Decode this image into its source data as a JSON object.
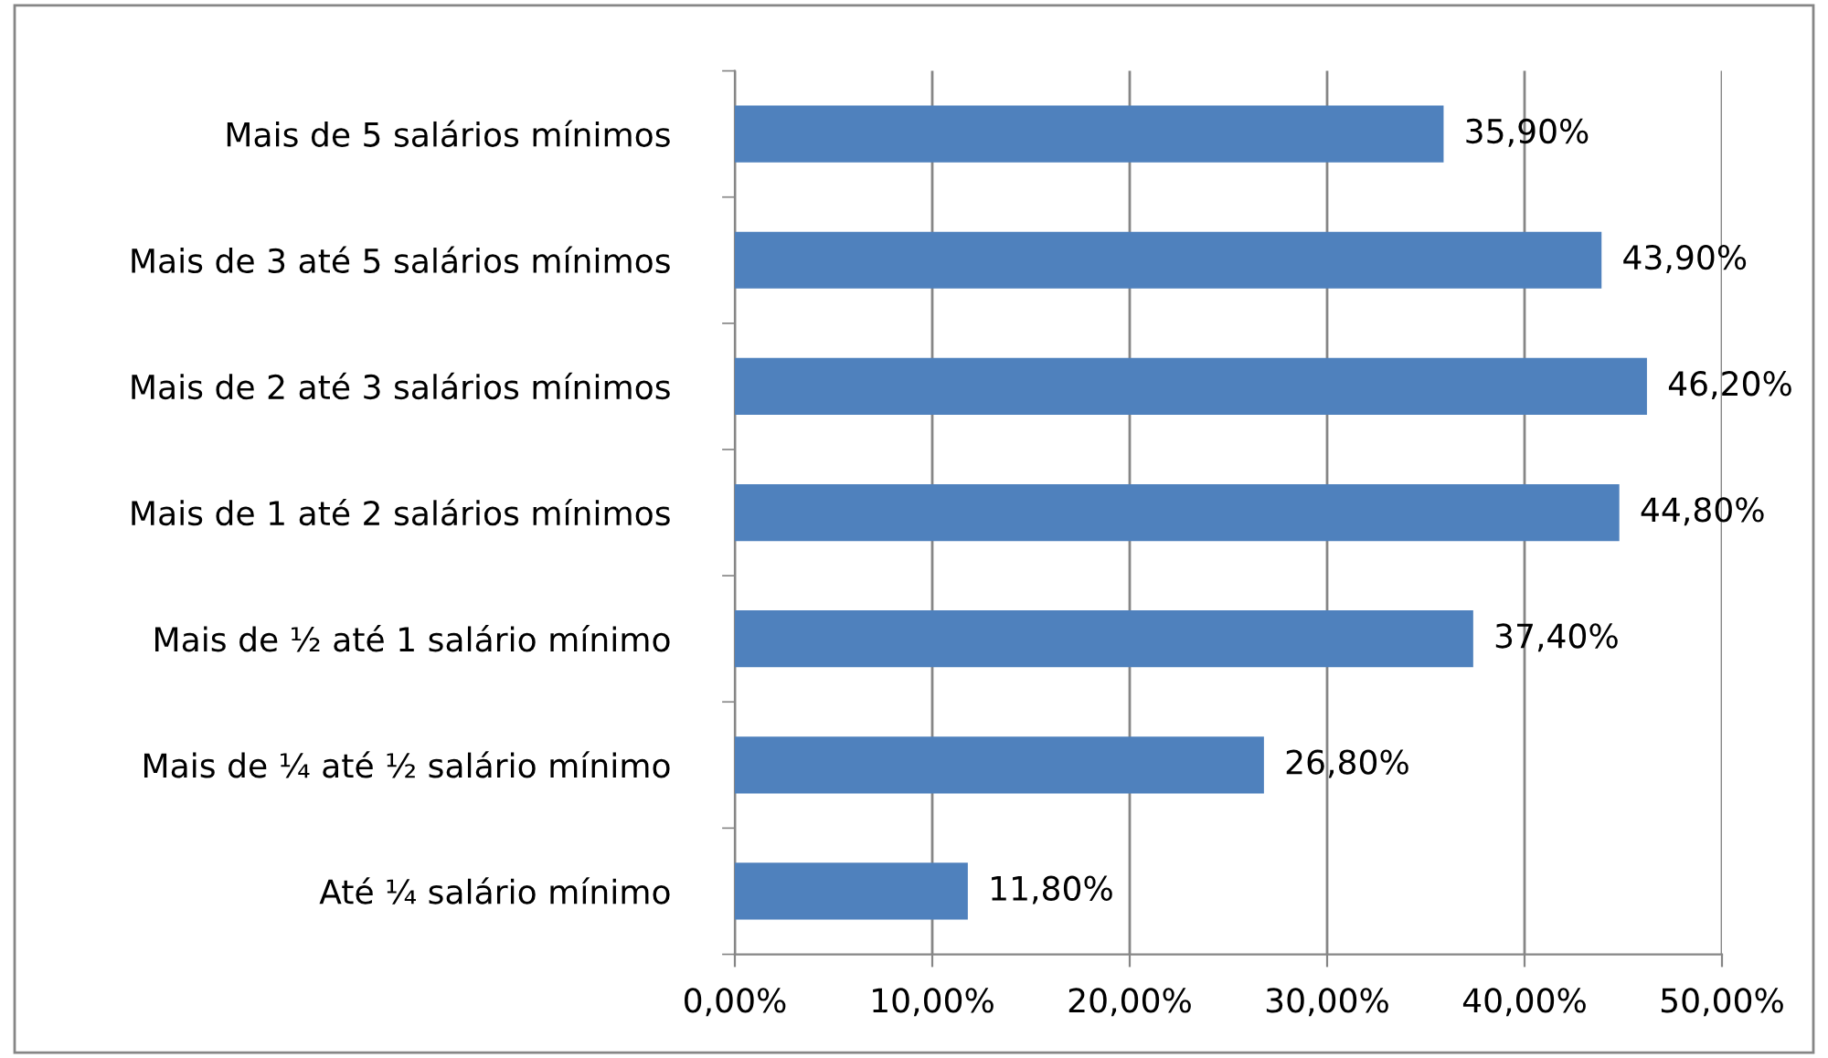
{
  "chart_data": {
    "type": "bar",
    "orientation": "horizontal",
    "categories": [
      "Mais de 5 salários mínimos",
      "Mais de 3 até 5 salários mínimos",
      "Mais de 2 até 3 salários mínimos",
      "Mais de 1 até 2 salários mínimos",
      "Mais de ½ até 1 salário mínimo",
      "Mais de ¼ até ½ salário mínimo",
      "Até ¼ salário mínimo"
    ],
    "values": [
      35.9,
      43.9,
      46.2,
      44.8,
      37.4,
      26.8,
      11.8
    ],
    "value_labels": [
      "35,90%",
      "43,90%",
      "46,20%",
      "44,80%",
      "37,40%",
      "26,80%",
      "11,80%"
    ],
    "color": "#4f81bd",
    "xlim": [
      0,
      50
    ],
    "xticks": [
      {
        "value": 0,
        "label": "0,00%"
      },
      {
        "value": 10,
        "label": "10,00%"
      },
      {
        "value": 20,
        "label": "20,00%"
      },
      {
        "value": 30,
        "label": "30,00%"
      },
      {
        "value": 40,
        "label": "40,00%"
      },
      {
        "value": 50,
        "label": "50,00%"
      }
    ],
    "grid": "x",
    "legend": false
  }
}
